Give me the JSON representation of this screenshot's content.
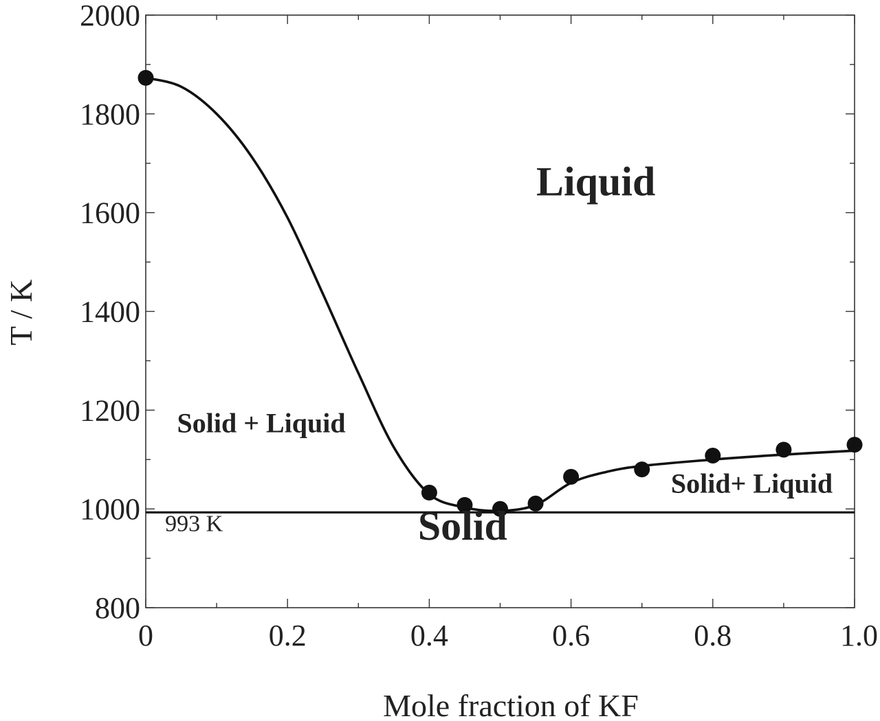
{
  "chart_data": {
    "type": "line",
    "xlabel": "Mole fraction of KF",
    "ylabel": "T / K",
    "xlim": [
      0,
      1.0
    ],
    "ylim": [
      800,
      2000
    ],
    "x_ticks": [
      0,
      0.2,
      0.4,
      0.6,
      0.8,
      1.0
    ],
    "x_tick_labels": [
      "0",
      "0.2",
      "0.4",
      "0.6",
      "0.8",
      "1.0"
    ],
    "y_ticks": [
      800,
      1000,
      1200,
      1400,
      1600,
      1800,
      2000
    ],
    "y_tick_labels": [
      "800",
      "1000",
      "1200",
      "1400",
      "1600",
      "1800",
      "2000"
    ],
    "grid": false,
    "series": [
      {
        "type": "scatter",
        "x": [
          0,
          0.4,
          0.45,
          0.5,
          0.55,
          0.6,
          0.7,
          0.8,
          0.9,
          1.0
        ],
        "y": [
          1873,
          1033,
          1008,
          1000,
          1011,
          1065,
          1080,
          1108,
          1120,
          1130
        ]
      },
      {
        "type": "line",
        "x": [
          0,
          0.05,
          0.1,
          0.15,
          0.2,
          0.25,
          0.3,
          0.35,
          0.4,
          0.45,
          0.5,
          0.55,
          0.6,
          0.65,
          0.7,
          0.8,
          0.9,
          1.0
        ],
        "y": [
          1873,
          1855,
          1800,
          1712,
          1590,
          1435,
          1275,
          1125,
          1030,
          1003,
          996,
          1008,
          1053,
          1075,
          1087,
          1100,
          1110,
          1118
        ]
      },
      {
        "type": "line",
        "x": [
          0,
          1.0
        ],
        "y": [
          993,
          993
        ]
      }
    ],
    "annotations": [
      {
        "text": "Liquid",
        "x": 0.635,
        "y": 1635
      },
      {
        "text": "Solid + Liquid",
        "x": 0.163,
        "y": 1155
      },
      {
        "text": "Solid+ Liquid",
        "x": 0.855,
        "y": 1033
      },
      {
        "text": "Solid",
        "x": 0.447,
        "y": 938
      },
      {
        "text": "993 K",
        "x": 0.068,
        "y": 955
      }
    ]
  }
}
